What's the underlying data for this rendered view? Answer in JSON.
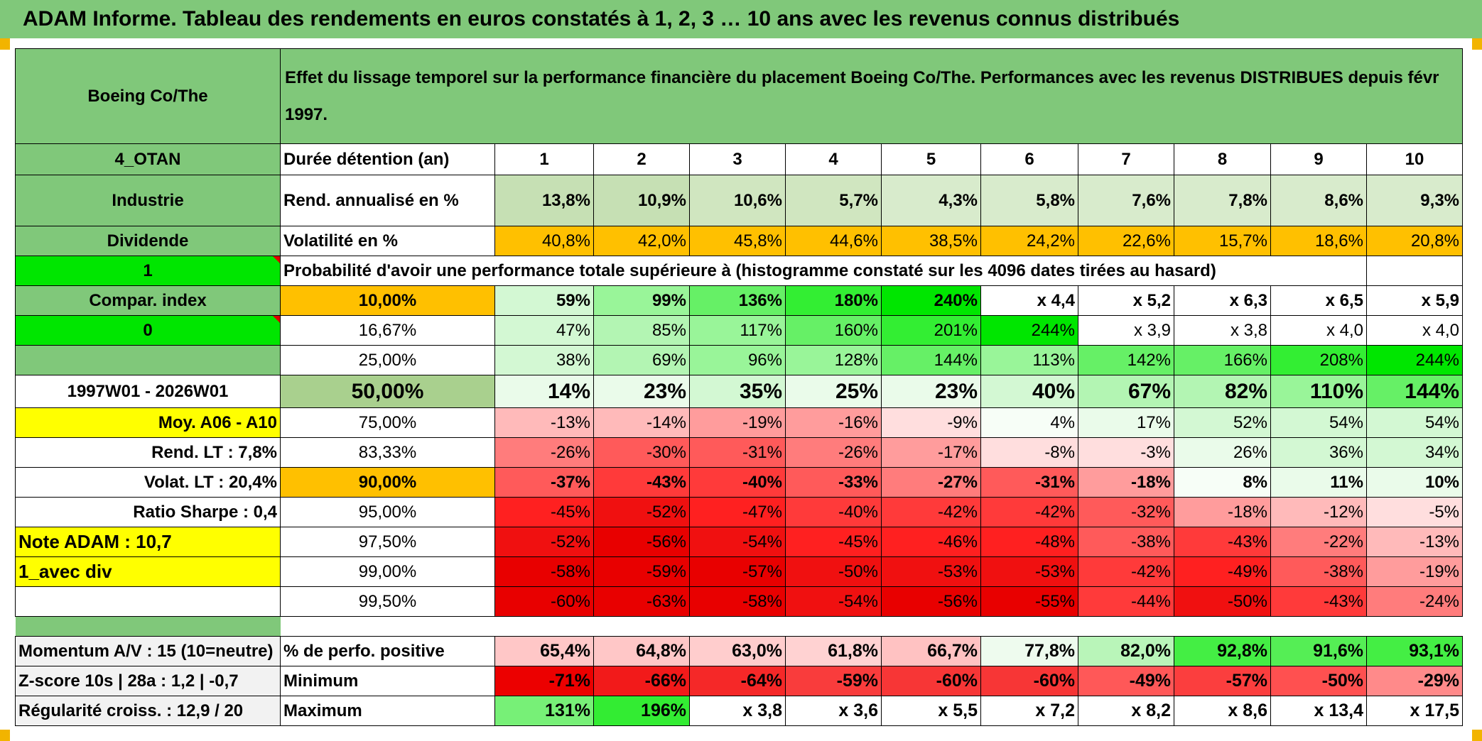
{
  "title": "ADAM Informe. Tableau des rendements en euros constatés à 1, 2, 3 … 10 ans avec les revenus connus distribués",
  "colors": {
    "header_green": "#80c87a",
    "yellow": "#ffff00",
    "orange": "#ffc000",
    "bright_green": "#00e600",
    "red_text": "#e00000"
  },
  "header": {
    "asset": "Boeing Co/The",
    "description": "Effet du lissage temporel sur la performance financière du placement Boeing Co/The. Performances avec les revenus DISTRIBUES depuis févr 1997."
  },
  "side_labels": {
    "region": "4_OTAN",
    "sector": "Industrie",
    "income": "Dividende",
    "index_flag": "1",
    "compar_index": "Compar. index",
    "compar_value": "0",
    "period": "1997W01 - 2026W01",
    "moy": "Moy. A06 - A10",
    "rend_lt": "Rend. LT :   7,8%",
    "volat_lt": "Volat. LT :   20,4%",
    "sharpe": "Ratio Sharpe :    0,4",
    "note": "Note ADAM : 10,7",
    "variant": "1_avec div"
  },
  "row_labels": {
    "duration": "Durée détention (an)",
    "rend": "Rend. annualisé en %",
    "vol": "Volatilité en %",
    "prob_text": "Probabilité d'avoir une performance totale supérieure à (histogramme constaté sur les 4096 dates tirées au hasard)"
  },
  "years": [
    "1",
    "2",
    "3",
    "4",
    "5",
    "6",
    "7",
    "8",
    "9",
    "10"
  ],
  "rend": [
    "13,8%",
    "10,9%",
    "10,6%",
    "5,7%",
    "4,3%",
    "5,8%",
    "7,6%",
    "7,8%",
    "8,6%",
    "9,3%"
  ],
  "vol": [
    "40,8%",
    "42,0%",
    "45,8%",
    "44,6%",
    "38,5%",
    "24,2%",
    "22,6%",
    "15,7%",
    "18,6%",
    "20,8%"
  ],
  "prob_rows": [
    {
      "p": "10,00%",
      "v": [
        "59%",
        "99%",
        "136%",
        "180%",
        "240%",
        "x 4,4",
        "x 5,2",
        "x 6,3",
        "x 6,5",
        "x 5,9"
      ]
    },
    {
      "p": "16,67%",
      "v": [
        "47%",
        "85%",
        "117%",
        "160%",
        "201%",
        "244%",
        "x 3,9",
        "x 3,8",
        "x 4,0",
        "x 4,0"
      ]
    },
    {
      "p": "25,00%",
      "v": [
        "38%",
        "69%",
        "96%",
        "128%",
        "144%",
        "113%",
        "142%",
        "166%",
        "208%",
        "244%"
      ]
    },
    {
      "p": "50,00%",
      "v": [
        "14%",
        "23%",
        "35%",
        "25%",
        "23%",
        "40%",
        "67%",
        "82%",
        "110%",
        "144%"
      ]
    },
    {
      "p": "75,00%",
      "v": [
        "-13%",
        "-14%",
        "-19%",
        "-16%",
        "-9%",
        "4%",
        "17%",
        "52%",
        "54%",
        "54%"
      ]
    },
    {
      "p": "83,33%",
      "v": [
        "-26%",
        "-30%",
        "-31%",
        "-26%",
        "-17%",
        "-8%",
        "-3%",
        "26%",
        "36%",
        "34%"
      ]
    },
    {
      "p": "90,00%",
      "v": [
        "-37%",
        "-43%",
        "-40%",
        "-33%",
        "-27%",
        "-31%",
        "-18%",
        "8%",
        "11%",
        "10%"
      ]
    },
    {
      "p": "95,00%",
      "v": [
        "-45%",
        "-52%",
        "-47%",
        "-40%",
        "-42%",
        "-42%",
        "-32%",
        "-18%",
        "-12%",
        "-5%"
      ]
    },
    {
      "p": "97,50%",
      "v": [
        "-52%",
        "-56%",
        "-54%",
        "-45%",
        "-46%",
        "-48%",
        "-38%",
        "-43%",
        "-22%",
        "-13%"
      ]
    },
    {
      "p": "99,00%",
      "v": [
        "-58%",
        "-59%",
        "-57%",
        "-50%",
        "-53%",
        "-53%",
        "-42%",
        "-49%",
        "-38%",
        "-19%"
      ]
    },
    {
      "p": "99,50%",
      "v": [
        "-60%",
        "-63%",
        "-58%",
        "-54%",
        "-56%",
        "-55%",
        "-44%",
        "-50%",
        "-43%",
        "-24%"
      ]
    }
  ],
  "bottom": [
    {
      "left": "Momentum A/V : 15 (10=neutre)",
      "label": "% de perfo. positive",
      "v": [
        "65,4%",
        "64,8%",
        "63,0%",
        "61,8%",
        "66,7%",
        "77,8%",
        "82,0%",
        "92,8%",
        "91,6%",
        "93,1%"
      ]
    },
    {
      "left": "Z-score 10s | 28a : 1,2 | -0,7",
      "label": "Minimum",
      "v": [
        "-71%",
        "-66%",
        "-64%",
        "-59%",
        "-60%",
        "-60%",
        "-49%",
        "-57%",
        "-50%",
        "-29%"
      ]
    },
    {
      "left": "Régularité croiss. : 12,9 / 20",
      "label": "Maximum",
      "v": [
        "131%",
        "196%",
        "x 3,8",
        "x 3,6",
        "x 5,5",
        "x 7,2",
        "x 8,2",
        "x 8,6",
        "x 13,4",
        "x 17,5"
      ]
    }
  ]
}
